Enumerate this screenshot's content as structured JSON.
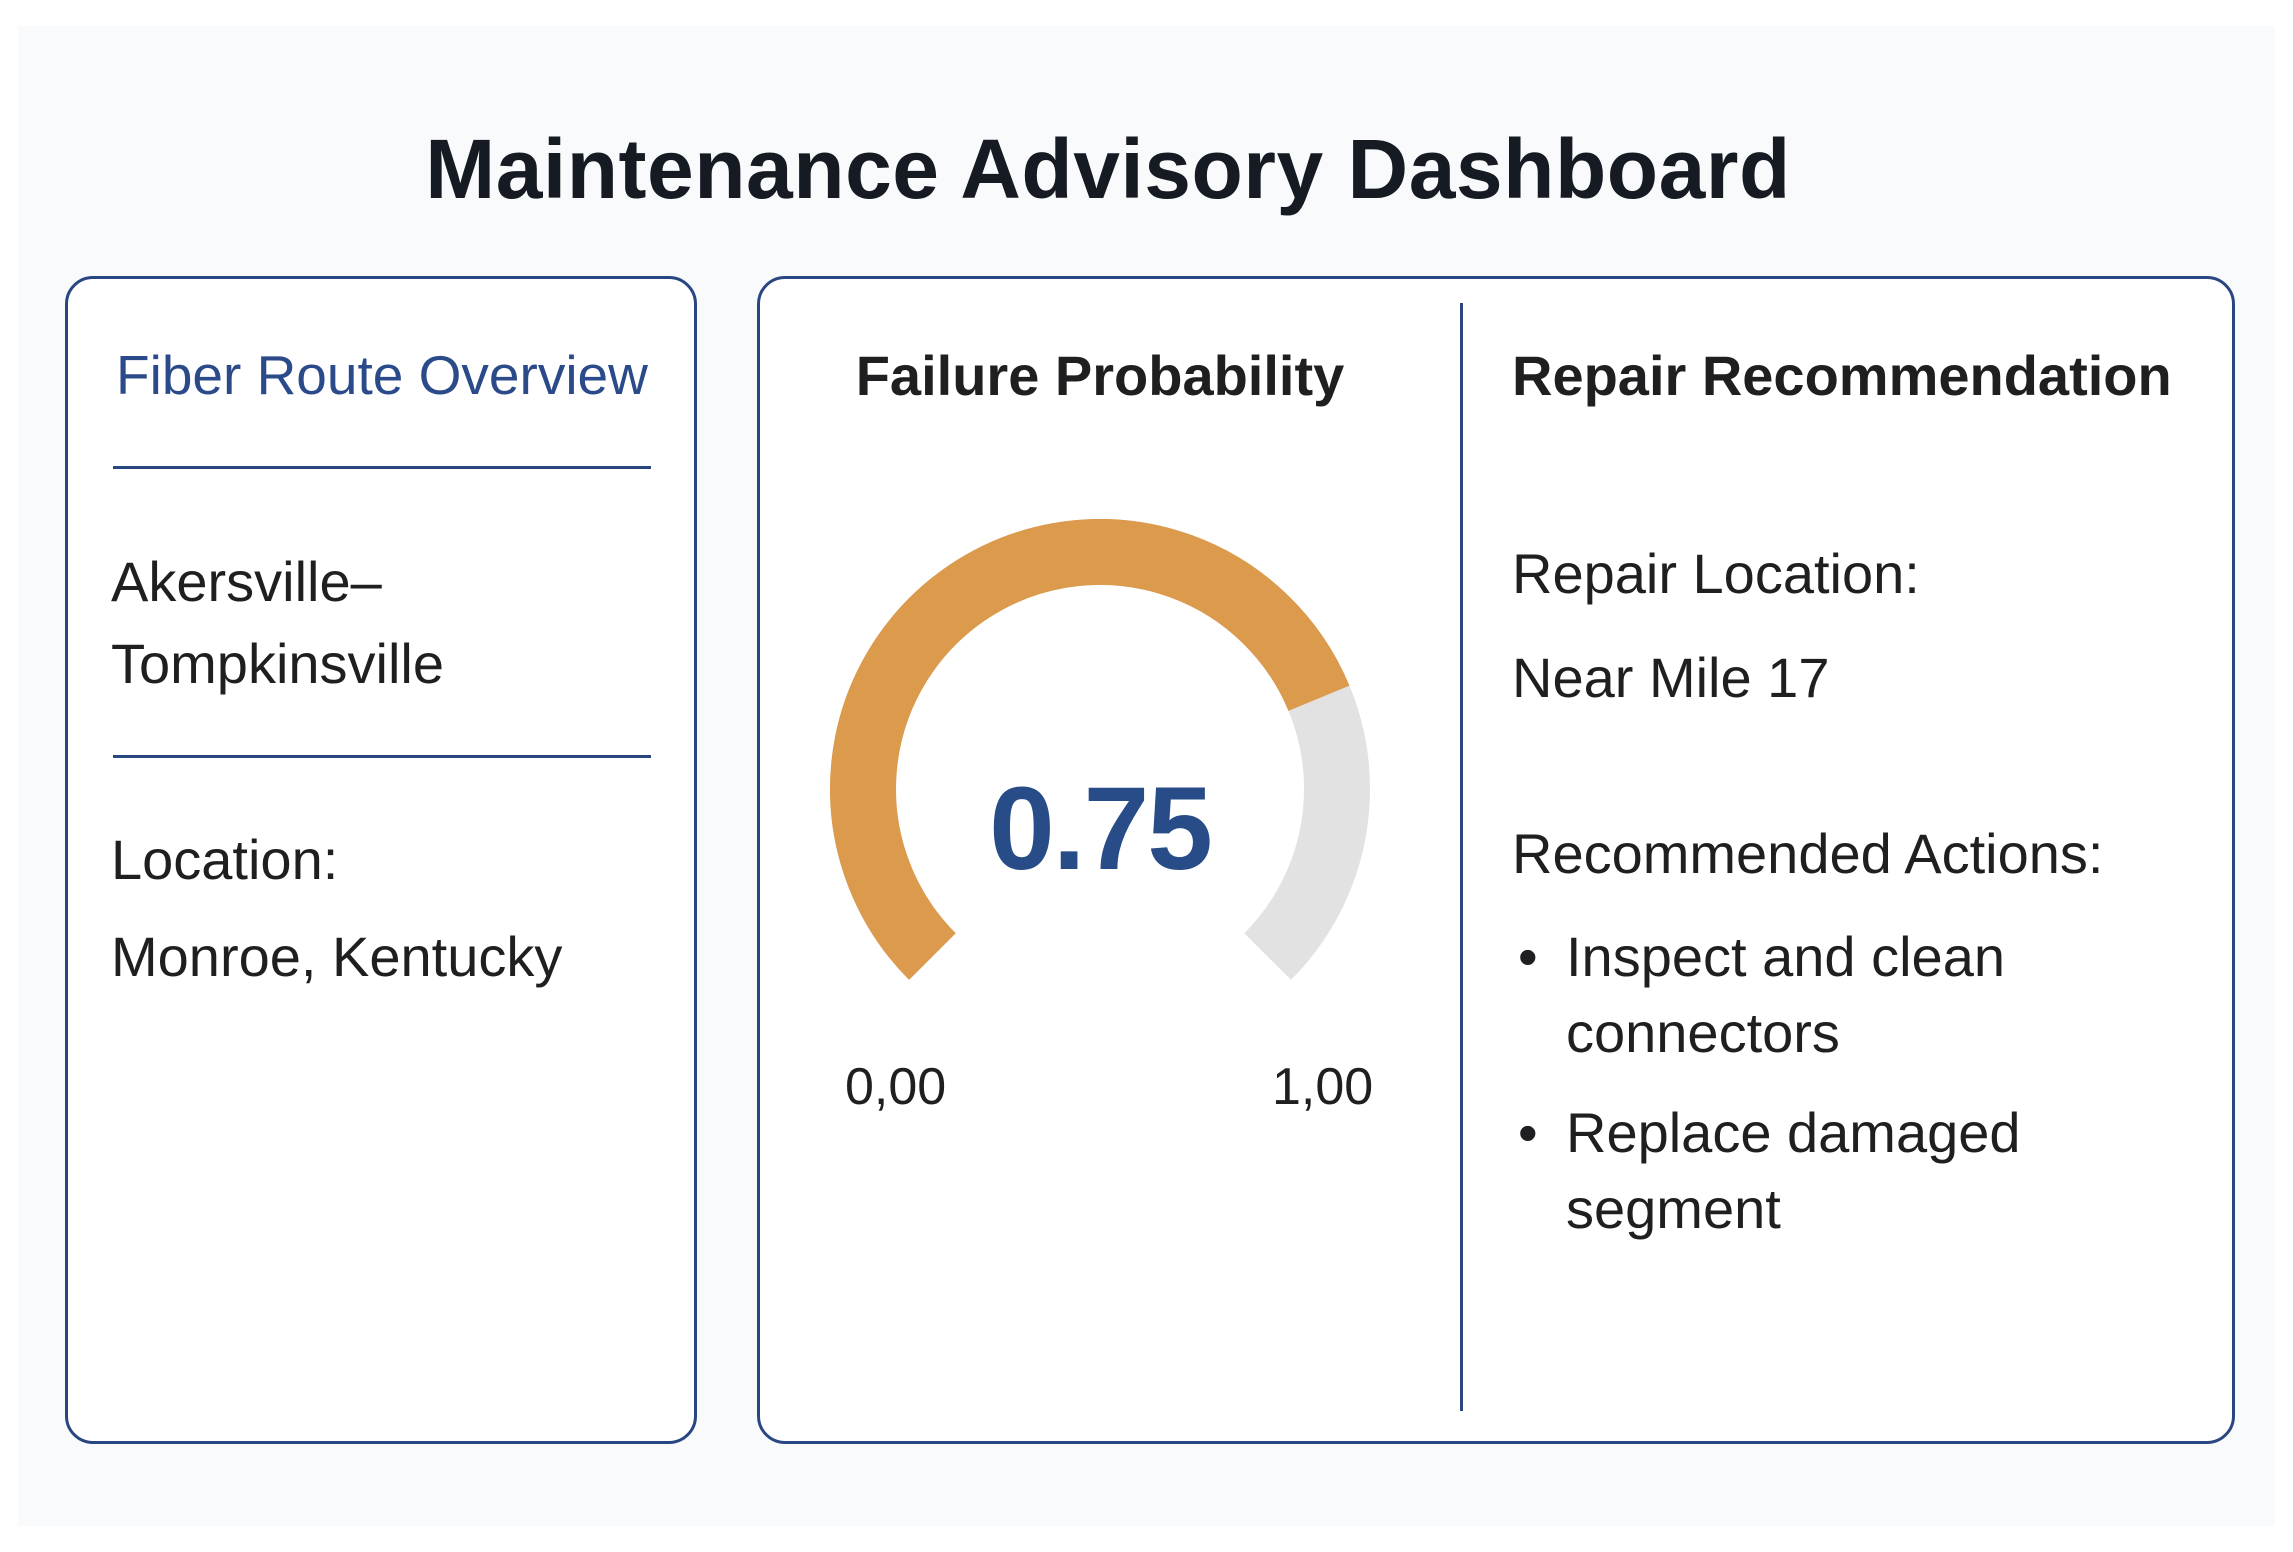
{
  "page": {
    "title": "Maintenance Advisory Dashboard"
  },
  "route_overview": {
    "heading": "Fiber Route Overview",
    "route_name_line1": "Akersville–",
    "route_name_line2": "Tompkinsville",
    "location_label": "Location:",
    "location_value": "Monroe, Kentucky"
  },
  "failure_probability": {
    "heading": "Failure Probability",
    "value_text": "0.75",
    "value": 0.75,
    "min_label": "0,00",
    "max_label": "1,00",
    "colors": {
      "fill": "#dc9a4c",
      "track": "#e2e2e2",
      "value_text": "#274c87"
    }
  },
  "repair_recommendation": {
    "heading": "Repair Recommendation",
    "location_label": "Repair Location:",
    "location_value": "Near Mile 17",
    "actions_label": "Recommended Actions:",
    "actions": [
      "Inspect and clean connectors",
      "Replace damaged segment"
    ]
  },
  "colors": {
    "accent": "#2a4680",
    "heading_blue": "#2a4a8a"
  }
}
